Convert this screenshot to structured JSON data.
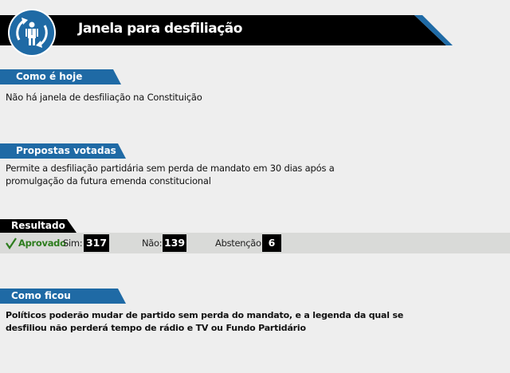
{
  "header": {
    "title": "Janela para desfiliação",
    "icon": "person-cycle-icon",
    "accent": "#1f6aa5"
  },
  "sections": {
    "como_e_hoje": {
      "label": "Como é hoje",
      "text": "Não há janela de desfiliação na Constituição"
    },
    "propostas": {
      "label": "Propostas votadas",
      "line1": "Permite a desfiliação partidária sem perda de mandato em 30 dias após a",
      "line2": "promulgação da futura emenda constitucional"
    },
    "resultado": {
      "label": "Resultado",
      "status": "Aprovado",
      "status_icon": "checkmark-icon",
      "status_color": "#2e7d1e",
      "sim_label": "Sim:",
      "sim": "317",
      "nao_label": "Não:",
      "nao": "139",
      "abst_label": "Abstenção:",
      "abst": "6"
    },
    "como_ficou": {
      "label": "Como ficou",
      "line1": "Políticos poderão mudar de partido sem perda do mandato, e a legenda da qual se",
      "line2": "desfiliou não perderá tempo de rádio e TV ou Fundo Partidário"
    }
  }
}
